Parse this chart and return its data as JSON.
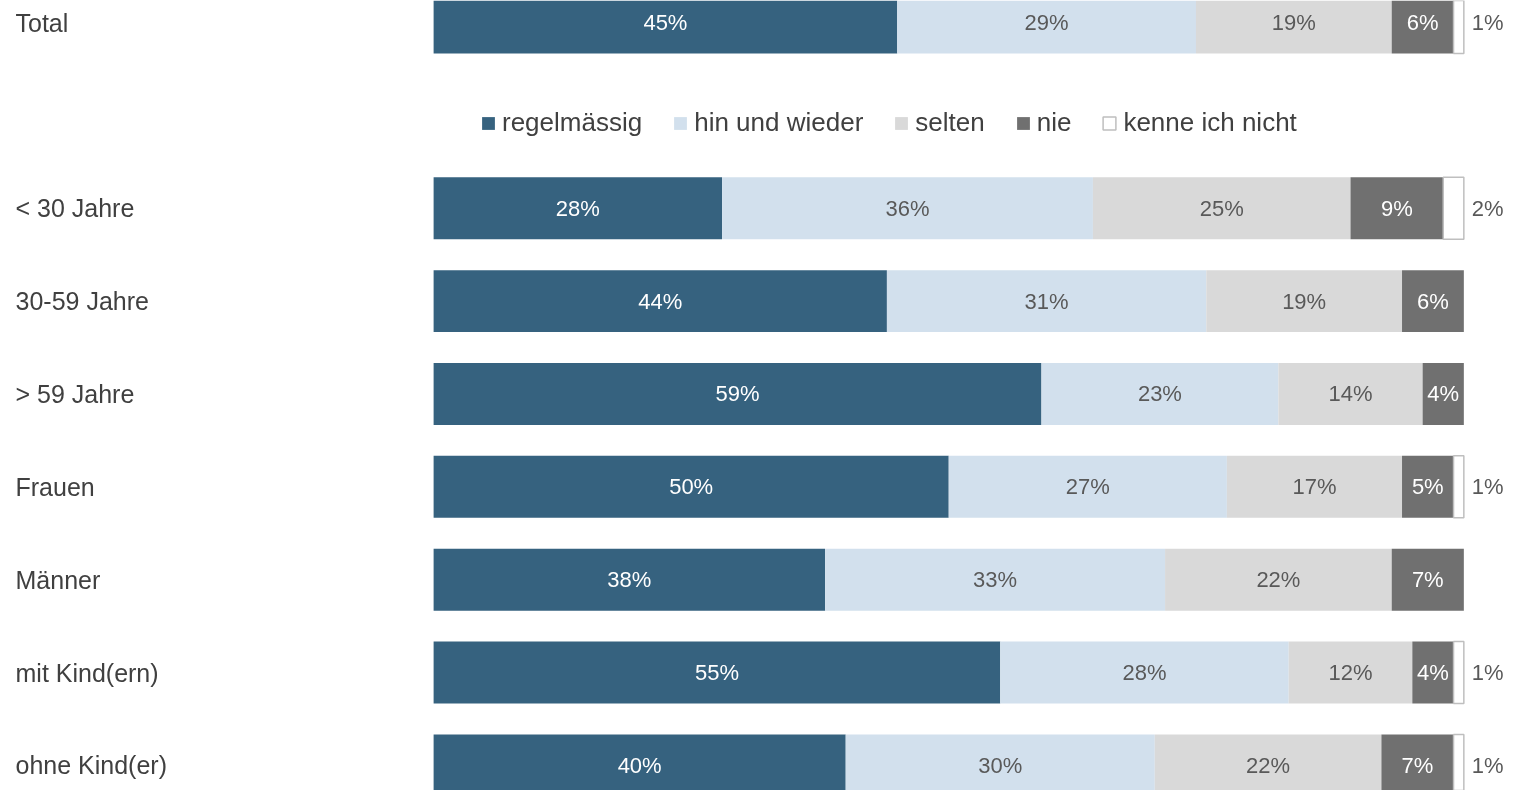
{
  "chart_data": {
    "type": "bar",
    "orientation": "horizontal",
    "stacked": true,
    "legend": "top",
    "grid": false,
    "categories": [
      "Total",
      "< 30 Jahre",
      "30-59 Jahre",
      "> 59 Jahre",
      "Frauen",
      "Männer",
      "mit Kind(ern)",
      "ohne Kind(er)"
    ],
    "series": [
      {
        "name": "regelmässig",
        "color": "#36627f",
        "values": [
          45,
          28,
          44,
          59,
          50,
          38,
          55,
          40
        ],
        "value_labels": [
          "45%",
          "28%",
          "44%",
          "59%",
          "50%",
          "38%",
          "55%",
          "40%"
        ]
      },
      {
        "name": "hin und wieder",
        "color": "#d2e0ed",
        "values": [
          29,
          36,
          31,
          23,
          27,
          33,
          28,
          30
        ],
        "value_labels": [
          "29%",
          "36%",
          "31%",
          "23%",
          "27%",
          "33%",
          "28%",
          "30%"
        ]
      },
      {
        "name": "selten",
        "color": "#d9d9d9",
        "values": [
          19,
          25,
          19,
          14,
          17,
          22,
          12,
          22
        ],
        "value_labels": [
          "19%",
          "25%",
          "19%",
          "14%",
          "17%",
          "22%",
          "12%",
          "22%"
        ]
      },
      {
        "name": "nie",
        "color": "#707070",
        "values": [
          6,
          9,
          6,
          4,
          5,
          7,
          4,
          7
        ],
        "value_labels": [
          "6%",
          "9%",
          "6%",
          "4%",
          "5%",
          "7%",
          "4%",
          "7%"
        ]
      },
      {
        "name": "kenne ich nicht",
        "color": "#ffffff",
        "values": [
          1,
          2,
          null,
          null,
          1,
          null,
          1,
          1
        ],
        "value_labels": [
          "1%",
          "2%",
          null,
          null,
          "1%",
          null,
          "1%",
          "1%"
        ]
      }
    ]
  }
}
